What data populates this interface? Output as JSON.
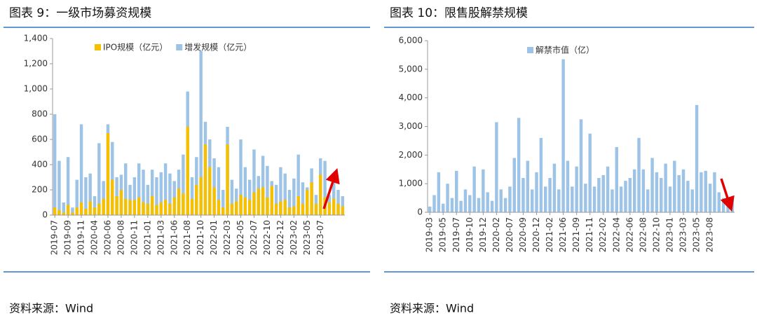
{
  "chart_data": [
    {
      "type": "bar",
      "title": "图表 9：一级市场募资规模",
      "source": "资料来源：Wind",
      "categories": [
        "2019-07",
        null,
        null,
        "2019-09",
        null,
        null,
        "2019-11",
        null,
        null,
        "2020-04",
        null,
        null,
        "2020-06",
        null,
        null,
        "2020-08",
        null,
        null,
        "2020-11",
        null,
        null,
        "2021-01",
        null,
        null,
        "2021-03",
        null,
        null,
        "2021-06",
        null,
        null,
        "2021-08",
        null,
        null,
        "2021-10",
        null,
        null,
        "2022-01",
        null,
        null,
        "2022-03",
        null,
        null,
        "2022-05",
        null,
        null,
        "2022-07",
        null,
        null,
        "2022-10",
        null,
        null,
        "2022-12",
        null,
        null,
        "2023-02",
        null,
        null,
        "2023-05",
        null,
        null,
        "2023-07",
        null,
        null,
        null,
        null,
        null
      ],
      "series": [
        {
          "name": "增发规模（亿元）",
          "color": "#9dc3e6",
          "values": [
            800,
            430,
            100,
            460,
            60,
            280,
            720,
            300,
            330,
            150,
            570,
            270,
            720,
            580,
            300,
            320,
            410,
            240,
            300,
            410,
            360,
            240,
            360,
            300,
            340,
            410,
            330,
            270,
            360,
            480,
            980,
            300,
            460,
            1300,
            740,
            600,
            450,
            380,
            200,
            700,
            280,
            210,
            600,
            380,
            280,
            520,
            310,
            470,
            390,
            270,
            240,
            380,
            330,
            200,
            290,
            480,
            260,
            220,
            370,
            160,
            450,
            430,
            160,
            300,
            200,
            150
          ]
        },
        {
          "name": "IPO规模（亿元）",
          "color": "#f5c000",
          "values": [
            60,
            40,
            20,
            80,
            20,
            60,
            100,
            50,
            110,
            60,
            90,
            130,
            650,
            280,
            150,
            200,
            130,
            120,
            120,
            140,
            100,
            90,
            150,
            80,
            100,
            120,
            90,
            140,
            210,
            170,
            700,
            130,
            240,
            300,
            560,
            380,
            220,
            120,
            60,
            560,
            90,
            110,
            160,
            140,
            120,
            180,
            210,
            220,
            140,
            230,
            90,
            110,
            120,
            60,
            70,
            150,
            90,
            200,
            260,
            90,
            320,
            140,
            100,
            130,
            90,
            70
          ]
        }
      ],
      "legend_order": [
        1,
        0
      ],
      "ylim": [
        0,
        1400
      ],
      "yticks": [
        0,
        200,
        400,
        600,
        800,
        {
          "value": 1000,
          "label": "1,000"
        },
        {
          "value": 1200,
          "label": "1,200"
        },
        {
          "value": 1400,
          "label": "1,400"
        }
      ],
      "legend": "top-left",
      "grid": false
    },
    {
      "type": "bar",
      "title": "图表 10：限售股解禁规模",
      "source": "资料来源：Wind",
      "categories": [
        "2019-03",
        null,
        null,
        "2019-05",
        null,
        null,
        "2019-07",
        null,
        null,
        "2019-10",
        null,
        null,
        "2019-12",
        null,
        null,
        "2020-02",
        null,
        null,
        "2020-07",
        null,
        null,
        "2020-09",
        null,
        null,
        "2020-12",
        null,
        null,
        "2021-02",
        null,
        null,
        "2021-06",
        null,
        null,
        "2021-09",
        null,
        null,
        "2021-11",
        null,
        null,
        "2022-02",
        null,
        null,
        "2022-04",
        null,
        null,
        "2022-06",
        null,
        null,
        "2022-08",
        null,
        null,
        "2022-10",
        null,
        null,
        "2023-01",
        null,
        null,
        "2023-03",
        null,
        null,
        "2023-05",
        null,
        null,
        "2023-08",
        null,
        null,
        null,
        null,
        null
      ],
      "series": [
        {
          "name": "解禁市值（亿）",
          "color": "#9dc3e6",
          "values": [
            200,
            600,
            1400,
            300,
            1000,
            500,
            1450,
            400,
            800,
            600,
            1600,
            500,
            1500,
            700,
            400,
            3150,
            800,
            500,
            900,
            1900,
            3300,
            1200,
            1800,
            800,
            1400,
            2600,
            900,
            1200,
            1700,
            800,
            5350,
            1800,
            900,
            1600,
            3250,
            1000,
            2750,
            900,
            1200,
            1300,
            1600,
            800,
            2280,
            900,
            1100,
            1200,
            1500,
            2600,
            1500,
            800,
            1900,
            1400,
            1200,
            1700,
            900,
            1800,
            1300,
            1500,
            1100,
            800,
            3750,
            1400,
            1450,
            1000,
            1400,
            700,
            500,
            300,
            450
          ]
        }
      ],
      "legend_order": [
        0
      ],
      "ylim": [
        0,
        6000
      ],
      "yticks": [
        0,
        {
          "value": 1000,
          "label": "1,000"
        },
        {
          "value": 2000,
          "label": "2,000"
        },
        {
          "value": 3000,
          "label": "3,000"
        },
        {
          "value": 4000,
          "label": "4,000"
        },
        {
          "value": 5000,
          "label": "5,000"
        },
        {
          "value": 6000,
          "label": "6,000"
        }
      ],
      "legend": "top",
      "grid": false
    }
  ]
}
